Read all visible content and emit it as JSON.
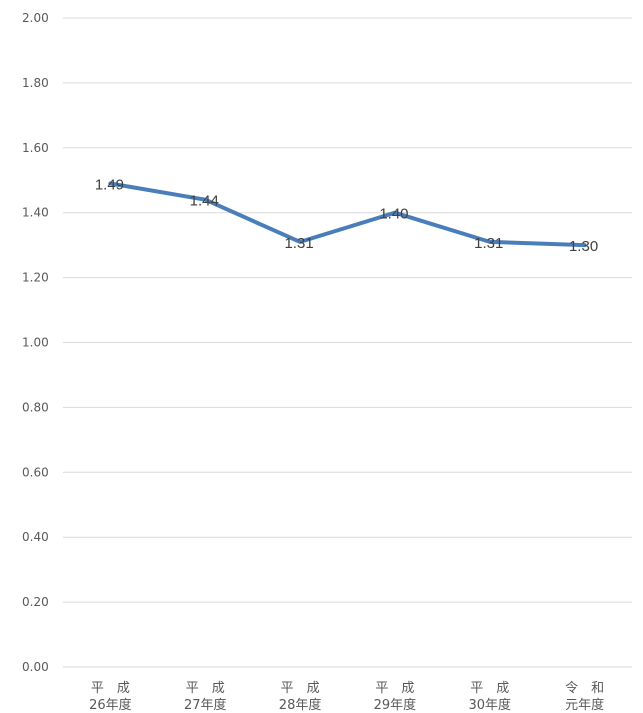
{
  "chart_data": {
    "type": "line",
    "title": "",
    "xlabel": "",
    "ylabel": "",
    "categories": [
      [
        "平　成",
        "26年度"
      ],
      [
        "平　成",
        "27年度"
      ],
      [
        "平　成",
        "28年度"
      ],
      [
        "平　成",
        "29年度"
      ],
      [
        "平　成",
        "30年度"
      ],
      [
        "令　和",
        "元年度"
      ]
    ],
    "series": [
      {
        "values": [
          1.49,
          1.44,
          1.31,
          1.4,
          1.31,
          1.3
        ],
        "labels": [
          "1.49",
          "1.44",
          "1.31",
          "1.40",
          "1.31",
          "1.30"
        ],
        "color": "#4a7ebb"
      }
    ],
    "ylim": [
      0,
      2.0
    ],
    "yticks": [
      "0.00",
      "0.20",
      "0.40",
      "0.60",
      "0.80",
      "1.00",
      "1.20",
      "1.40",
      "1.60",
      "1.80",
      "2.00"
    ],
    "grid": true,
    "legend": "none"
  }
}
